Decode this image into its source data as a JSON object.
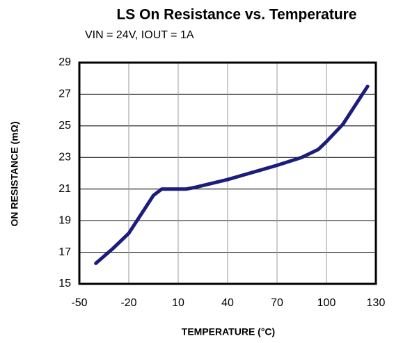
{
  "chart_data": {
    "type": "line",
    "title": "LS On Resistance vs. Temperature",
    "subtitle": "VIN = 24V, IOUT = 1A",
    "x_label": "TEMPERATURE  (°C)",
    "y_label": "ON RESISTANCE  (mΩ)",
    "x": [
      -40,
      -30,
      -20,
      -10,
      -5,
      0,
      10,
      15,
      20,
      40,
      70,
      85,
      95,
      100,
      110,
      125
    ],
    "series": [
      {
        "name": "LS On Resistance",
        "color": "#1c1c7c",
        "values": [
          16.3,
          17.2,
          18.2,
          19.8,
          20.6,
          21.0,
          21.0,
          21.0,
          21.1,
          21.6,
          22.5,
          23.0,
          23.5,
          24.0,
          25.1,
          27.5
        ]
      }
    ],
    "xlim": [
      -50,
      130
    ],
    "xticks": [
      -50,
      -20,
      10,
      40,
      70,
      100,
      130
    ],
    "ylim": [
      15,
      29
    ],
    "yticks": [
      15,
      17,
      19,
      21,
      23,
      25,
      27,
      29
    ],
    "grid": true
  }
}
